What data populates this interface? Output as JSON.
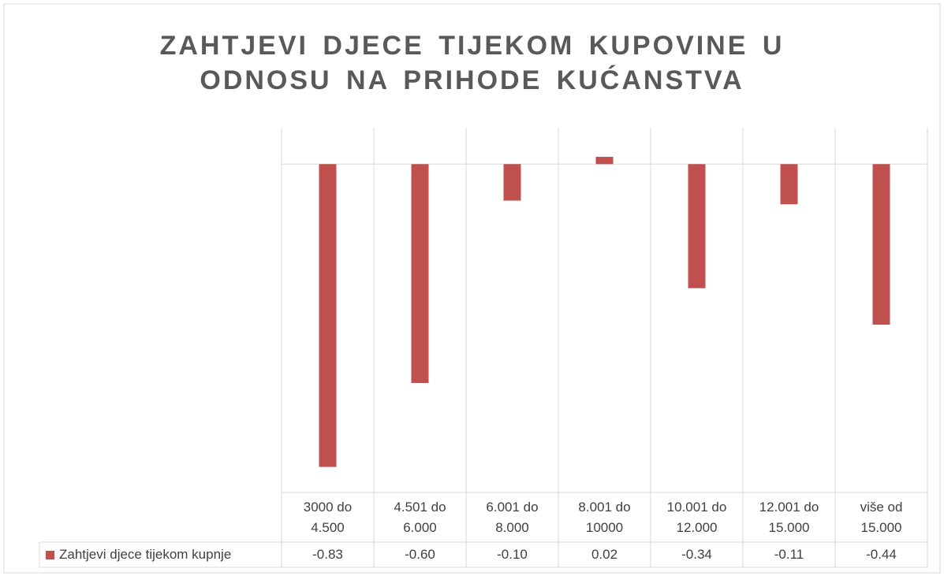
{
  "chart_data": {
    "type": "bar",
    "title": "ZAHTJEVI DJECE TIJEKOM KUPOVINE U ODNOSU NA PRIHODE KUĆANSTVA",
    "categories": [
      "3000 do 4.500",
      "4.501 do 6.000",
      "6.001 do 8.000",
      "8.001 do 10000",
      "10.001 do 12.000",
      "12.001 do 15.000",
      "više od 15.000"
    ],
    "series": [
      {
        "name": "Zahtjevi djece tijekom kupnje",
        "color": "#c0504d",
        "values": [
          -0.83,
          -0.6,
          -0.1,
          0.02,
          -0.34,
          -0.11,
          -0.44
        ],
        "value_labels": [
          "-0.83",
          "-0.60",
          "-0.10",
          "0.02",
          "-0.34",
          "-0.11",
          "-0.44"
        ]
      }
    ],
    "ylim": [
      -0.9,
      0.1
    ]
  }
}
